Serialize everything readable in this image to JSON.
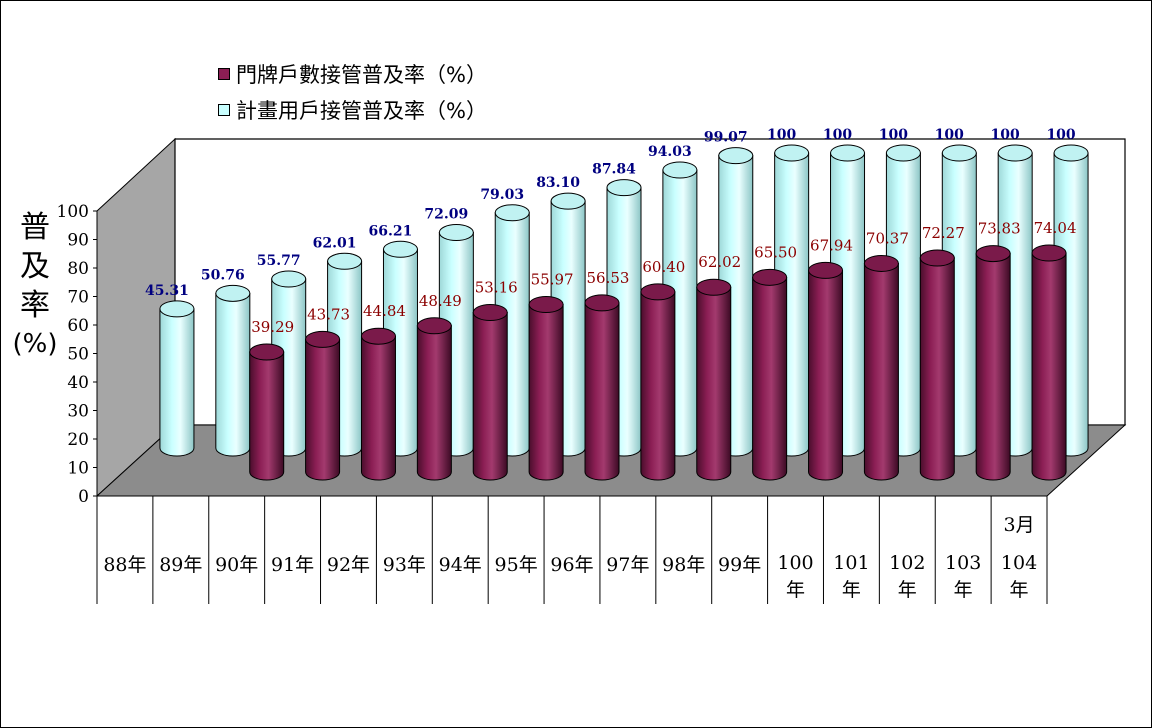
{
  "legend": {
    "series1": "門牌戶數接管普及率（%）",
    "series2": "計畫用戶接管普及率（%）"
  },
  "y_axis": {
    "label_chars": [
      "普",
      "及",
      "率"
    ],
    "label_unit": "(%)"
  },
  "colors": {
    "series1": "#8B1E54",
    "series2": "#C9FFFF",
    "series1_label": "#8B0000",
    "series2_label": "#000080",
    "wall": "#A6A6A6",
    "floor": "#8C8C8C"
  },
  "chart_data": {
    "type": "bar",
    "style": "3d-cylinder",
    "categories": [
      "88年",
      "89年",
      "90年",
      "91年",
      "92年",
      "93年",
      "94年",
      "95年",
      "96年",
      "97年",
      "98年",
      "99年",
      "100年",
      "101年",
      "102年",
      "103年",
      "104年"
    ],
    "category_note": {
      "index": 16,
      "text": "3月"
    },
    "ylabel": "普及率(%)",
    "ylim": [
      0,
      100
    ],
    "yticks": [
      "0",
      "10",
      "20",
      "30",
      "40",
      "50",
      "60",
      "70",
      "80",
      "90",
      "100"
    ],
    "series": [
      {
        "name": "門牌戶數接管普及率（%）",
        "values": [
          null,
          null,
          39.29,
          43.73,
          44.84,
          48.49,
          53.16,
          55.97,
          56.53,
          60.4,
          62.02,
          65.5,
          67.94,
          70.37,
          72.27,
          73.83,
          74.04
        ],
        "labels": [
          "",
          "",
          "39.29",
          "43.73",
          "44.84",
          "48.49",
          "53.16",
          "55.97",
          "56.53",
          "60.40",
          "62.02",
          "65.50",
          "67.94",
          "70.37",
          "72.27",
          "73.83",
          "74.04"
        ]
      },
      {
        "name": "計畫用戶接管普及率（%）",
        "values": [
          45.31,
          50.76,
          55.77,
          62.01,
          66.21,
          72.09,
          79.03,
          83.1,
          87.84,
          94.03,
          99.07,
          100,
          100,
          100,
          100,
          100,
          100
        ],
        "labels": [
          "45.31",
          "50.76",
          "55.77",
          "62.01",
          "66.21",
          "72.09",
          "79.03",
          "83.10",
          "87.84",
          "94.03",
          "99.07",
          "100",
          "100",
          "100",
          "100",
          "100",
          "100"
        ]
      }
    ]
  }
}
